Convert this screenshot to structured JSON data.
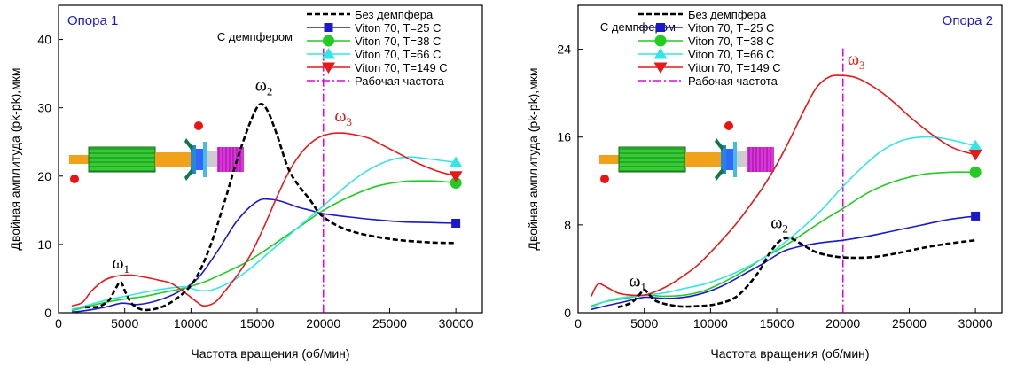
{
  "colors": {
    "no_damper": "#000000",
    "t25": "#1a1acc",
    "t38": "#22cc22",
    "t66": "#33e6e6",
    "t149": "#e61a1a",
    "operating": "#e600e6",
    "corner_text": "#1a1acc"
  },
  "chart_data": [
    {
      "type": "line",
      "corner_label": "Опора 1",
      "damper_label": "С демпфером",
      "xlabel": "Частота вращения (об/мин)",
      "ylabel": "Двойная амплитуда (pk-pk),мкм",
      "xlim": [
        0,
        32000
      ],
      "ylim": [
        0,
        45
      ],
      "xticks": [
        0,
        5000,
        10000,
        15000,
        20000,
        25000,
        30000
      ],
      "yticks": [
        0,
        10,
        20,
        30,
        40
      ],
      "operating_speed": 20000,
      "legend_position": "top-right",
      "legend": [
        "Без демпфера",
        "Viton 70, T=25 C",
        "Viton 70, T=38 C",
        "Viton 70, T=66 C",
        "Viton 70, T=149 C",
        "Рабочая частота"
      ],
      "series": [
        {
          "name": "Без демпфера",
          "color": "#000000",
          "dash": true,
          "marker": "none",
          "x": [
            2000,
            3000,
            3800,
            4300,
            4700,
            5100,
            5600,
            6500,
            8000,
            9500,
            10500,
            11500,
            12500,
            13500,
            14500,
            15200,
            15800,
            16500,
            17500,
            19000,
            20000,
            22000,
            25000,
            28000,
            30000
          ],
          "y": [
            0.8,
            0.9,
            1.8,
            3.5,
            4.5,
            2.8,
            1.2,
            0.4,
            1.0,
            3.0,
            5.5,
            10.0,
            16.0,
            22.5,
            28.0,
            30.5,
            29.5,
            26.0,
            20.5,
            16.5,
            14.0,
            12.0,
            10.8,
            10.3,
            10.2
          ]
        },
        {
          "name": "Viton 70, T=25 C",
          "color": "#1a1acc",
          "dash": false,
          "marker": "square",
          "x": [
            1000,
            2000,
            3500,
            4800,
            6000,
            7500,
            9000,
            10500,
            12000,
            13500,
            15000,
            16000,
            17000,
            18000,
            19000,
            20000,
            22000,
            24000,
            26000,
            28000,
            30000
          ],
          "y": [
            0.1,
            0.3,
            0.8,
            1.4,
            1.2,
            1.8,
            3.0,
            5.0,
            9.0,
            13.5,
            16.3,
            16.6,
            16.2,
            15.5,
            15.0,
            14.5,
            14.0,
            13.6,
            13.3,
            13.2,
            13.1
          ]
        },
        {
          "name": "Viton 70, T=38 C",
          "color": "#22cc22",
          "dash": false,
          "marker": "circle",
          "x": [
            1000,
            2000,
            3500,
            5000,
            6500,
            8000,
            9500,
            11000,
            12500,
            14000,
            15500,
            17000,
            18500,
            20000,
            22000,
            24000,
            26000,
            28000,
            29000,
            30000
          ],
          "y": [
            0.3,
            0.8,
            1.5,
            2.0,
            2.4,
            3.0,
            3.6,
            4.5,
            5.8,
            7.2,
            9.0,
            11.0,
            13.0,
            15.0,
            17.0,
            18.5,
            19.2,
            19.3,
            19.2,
            19.0
          ]
        },
        {
          "name": "Viton 70, T=66 C",
          "color": "#33e6e6",
          "dash": false,
          "marker": "triangle",
          "x": [
            1000,
            2000,
            3500,
            5000,
            6500,
            8000,
            9500,
            10500,
            11500,
            13000,
            14500,
            16000,
            17500,
            19000,
            20500,
            22000,
            23500,
            25000,
            26500,
            28000,
            30000
          ],
          "y": [
            0.5,
            1.0,
            1.8,
            2.4,
            3.0,
            3.5,
            3.8,
            3.3,
            3.3,
            4.5,
            6.5,
            9.0,
            11.5,
            14.0,
            16.5,
            19.0,
            21.0,
            22.3,
            22.8,
            22.5,
            22.0
          ]
        },
        {
          "name": "Viton 70, T=149 C",
          "color": "#e61a1a",
          "dash": false,
          "marker": "triangle-down",
          "x": [
            1000,
            1800,
            2500,
            3500,
            4500,
            5500,
            6500,
            7500,
            8500,
            9500,
            10500,
            11000,
            11800,
            12500,
            13500,
            14500,
            15500,
            16500,
            17500,
            18500,
            19500,
            20500,
            21500,
            22500,
            23500,
            24500,
            25500,
            27000,
            28500,
            30000
          ],
          "y": [
            1.0,
            1.5,
            3.2,
            4.8,
            5.4,
            5.5,
            5.2,
            4.8,
            4.3,
            3.0,
            1.5,
            1.0,
            1.5,
            3.0,
            5.5,
            8.5,
            12.5,
            17.0,
            21.0,
            23.8,
            25.5,
            26.2,
            26.3,
            26.0,
            25.5,
            24.5,
            23.5,
            22.0,
            20.8,
            20.0
          ]
        }
      ],
      "annotations": [
        {
          "symbol": "ω",
          "sub": "1",
          "x": 4700,
          "y": 6.5,
          "color": "#000000"
        },
        {
          "symbol": "ω",
          "sub": "2",
          "x": 15500,
          "y": 32.5,
          "color": "#000000"
        },
        {
          "symbol": "ω",
          "sub": "3",
          "x": 21500,
          "y": 28.0,
          "color": "#e61a1a"
        }
      ]
    },
    {
      "type": "line",
      "corner_label": "Опора 2",
      "damper_label": "С демпфером",
      "xlabel": "Частота вращения (об/мин)",
      "ylabel": "Двойная амплитуда (pk-pk),мкм",
      "xlim": [
        0,
        32000
      ],
      "ylim": [
        0,
        28
      ],
      "xticks": [
        0,
        5000,
        10000,
        15000,
        20000,
        25000,
        30000
      ],
      "yticks": [
        0,
        8,
        16,
        24
      ],
      "operating_speed": 20000,
      "legend_position": "top-center",
      "legend": [
        "Без демпфера",
        "Viton 70, T=25 C",
        "Viton 70, T=38 C",
        "Viton 70, T=66 C",
        "Viton 70, T=149 C",
        "Рабочая частота"
      ],
      "series": [
        {
          "name": "Без демпфера",
          "color": "#000000",
          "dash": true,
          "marker": "none",
          "x": [
            3000,
            4000,
            4600,
            5000,
            5400,
            6000,
            7500,
            9000,
            10500,
            12000,
            13500,
            14500,
            15300,
            16000,
            16800,
            18000,
            19500,
            21000,
            22500,
            24000,
            26000,
            28000,
            30000
          ],
          "y": [
            0.5,
            0.9,
            1.6,
            2.1,
            1.6,
            1.0,
            0.6,
            0.6,
            0.8,
            1.5,
            3.5,
            5.5,
            6.6,
            6.8,
            6.3,
            5.5,
            5.1,
            5.0,
            5.1,
            5.4,
            5.9,
            6.3,
            6.6
          ]
        },
        {
          "name": "Viton 70, T=25 C",
          "color": "#1a1acc",
          "dash": false,
          "marker": "square",
          "x": [
            1000,
            2000,
            3500,
            5000,
            6500,
            8000,
            9500,
            11000,
            12500,
            14000,
            15500,
            17000,
            18500,
            20000,
            22000,
            24000,
            26000,
            28000,
            30000
          ],
          "y": [
            0.3,
            0.6,
            1.0,
            1.4,
            1.3,
            1.4,
            1.8,
            2.5,
            3.5,
            4.5,
            5.6,
            6.1,
            6.4,
            6.6,
            7.0,
            7.5,
            8.0,
            8.5,
            8.8
          ]
        },
        {
          "name": "Viton 70, T=38 C",
          "color": "#22cc22",
          "dash": false,
          "marker": "circle",
          "x": [
            1000,
            2000,
            3500,
            5000,
            6500,
            8000,
            9500,
            11000,
            12500,
            14000,
            15500,
            17000,
            18500,
            20000,
            22000,
            24000,
            26000,
            28000,
            30000
          ],
          "y": [
            0.6,
            1.0,
            1.3,
            1.6,
            1.5,
            1.6,
            2.0,
            2.8,
            3.8,
            5.0,
            6.0,
            7.2,
            8.4,
            9.5,
            11.0,
            12.0,
            12.6,
            12.8,
            12.8
          ]
        },
        {
          "name": "Viton 70, T=66 C",
          "color": "#33e6e6",
          "dash": false,
          "marker": "triangle",
          "x": [
            1000,
            2000,
            3500,
            5000,
            6500,
            8000,
            9500,
            11000,
            12500,
            14000,
            15500,
            17000,
            18500,
            20000,
            21500,
            23000,
            24500,
            26000,
            27500,
            29000,
            30000
          ],
          "y": [
            0.5,
            1.0,
            1.4,
            1.6,
            1.8,
            2.2,
            2.6,
            3.2,
            4.0,
            5.0,
            6.3,
            7.8,
            9.5,
            11.5,
            13.3,
            14.8,
            15.7,
            16.0,
            15.9,
            15.5,
            15.2
          ]
        },
        {
          "name": "Viton 70, T=149 C",
          "color": "#e61a1a",
          "dash": false,
          "marker": "triangle-down",
          "x": [
            1000,
            1500,
            2200,
            3000,
            4000,
            5000,
            6000,
            7000,
            8000,
            9000,
            10000,
            11000,
            12000,
            13000,
            14000,
            15000,
            16000,
            17000,
            18000,
            19000,
            20000,
            21000,
            22000,
            23000,
            24000,
            25000,
            26000,
            27000,
            28000,
            29000,
            30000
          ],
          "y": [
            1.5,
            2.6,
            2.3,
            1.8,
            1.6,
            1.6,
            2.0,
            2.6,
            3.4,
            4.3,
            5.5,
            6.8,
            8.2,
            9.8,
            11.5,
            13.5,
            15.8,
            18.3,
            20.5,
            21.5,
            21.6,
            21.4,
            20.8,
            20.0,
            19.0,
            17.9,
            16.9,
            16.0,
            15.2,
            14.7,
            14.4
          ]
        }
      ],
      "annotations": [
        {
          "symbol": "ω",
          "sub": "1",
          "x": 4500,
          "y": 2.4,
          "color": "#000000"
        },
        {
          "symbol": "ω",
          "sub": "2",
          "x": 15200,
          "y": 7.7,
          "color": "#000000"
        },
        {
          "symbol": "ω",
          "sub": "3",
          "x": 21000,
          "y": 22.6,
          "color": "#e61a1a"
        }
      ]
    }
  ]
}
